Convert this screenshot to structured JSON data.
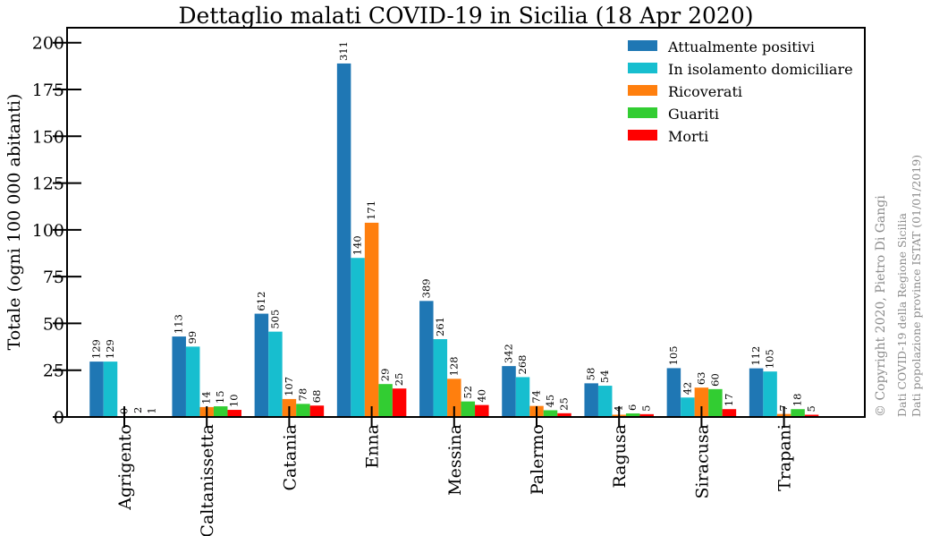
{
  "chart_data": {
    "type": "bar",
    "title": "Dettaglio malati COVID-19 in Sicilia (18 Apr 2020)",
    "xlabel": "",
    "ylabel": "Totale (ogni 100 000 abitanti)",
    "ylim": [
      0,
      208
    ],
    "yticks": [
      0,
      25,
      50,
      75,
      100,
      125,
      150,
      175,
      200
    ],
    "grid": false,
    "legend_position": "top-right",
    "categories": [
      "Agrigento",
      "Caltanissetta",
      "Catania",
      "Enna",
      "Messina",
      "Palermo",
      "Ragusa",
      "Siracusa",
      "Trapani"
    ],
    "series": [
      {
        "name": "Attualmente positivi",
        "color": "#1f77b4",
        "values": [
          29.6,
          43.0,
          55.2,
          188.9,
          62.0,
          27.2,
          18.0,
          26.1,
          26.0
        ],
        "labels": [
          "129",
          "113",
          "612",
          "311",
          "389",
          "342",
          "58",
          "105",
          "112"
        ]
      },
      {
        "name": "In isolamento domiciliare",
        "color": "#17becf",
        "values": [
          29.6,
          37.6,
          45.6,
          85.0,
          41.6,
          21.3,
          16.7,
          10.4,
          24.3
        ],
        "labels": [
          "129",
          "99",
          "505",
          "140",
          "261",
          "268",
          "54",
          "42",
          "105"
        ]
      },
      {
        "name": "Ricoverati",
        "color": "#ff7f0e",
        "values": [
          0.0,
          5.3,
          9.6,
          103.8,
          20.4,
          5.9,
          1.2,
          15.7,
          1.6
        ],
        "labels": [
          "0",
          "14",
          "107",
          "171",
          "128",
          "74",
          "4",
          "63",
          "7"
        ]
      },
      {
        "name": "Guariti",
        "color": "#32cd32",
        "values": [
          0.5,
          5.7,
          7.0,
          17.6,
          8.3,
          3.6,
          1.9,
          14.9,
          4.2
        ],
        "labels": [
          "2",
          "15",
          "78",
          "29",
          "52",
          "45",
          "6",
          "60",
          "18"
        ]
      },
      {
        "name": "Morti",
        "color": "#ff0000",
        "values": [
          0.2,
          3.8,
          6.1,
          15.2,
          6.4,
          2.0,
          1.5,
          4.2,
          1.2
        ],
        "labels": [
          "1",
          "10",
          "68",
          "25",
          "40",
          "25",
          "5",
          "17",
          "5"
        ]
      }
    ]
  },
  "credits": {
    "copyright": "© Copyright 2020, Pietro Di Gangi",
    "source_covid": "Dati COVID-19 della Regione Sicilia",
    "source_population": "Dati popolazione province ISTAT (01/01/2019)"
  }
}
